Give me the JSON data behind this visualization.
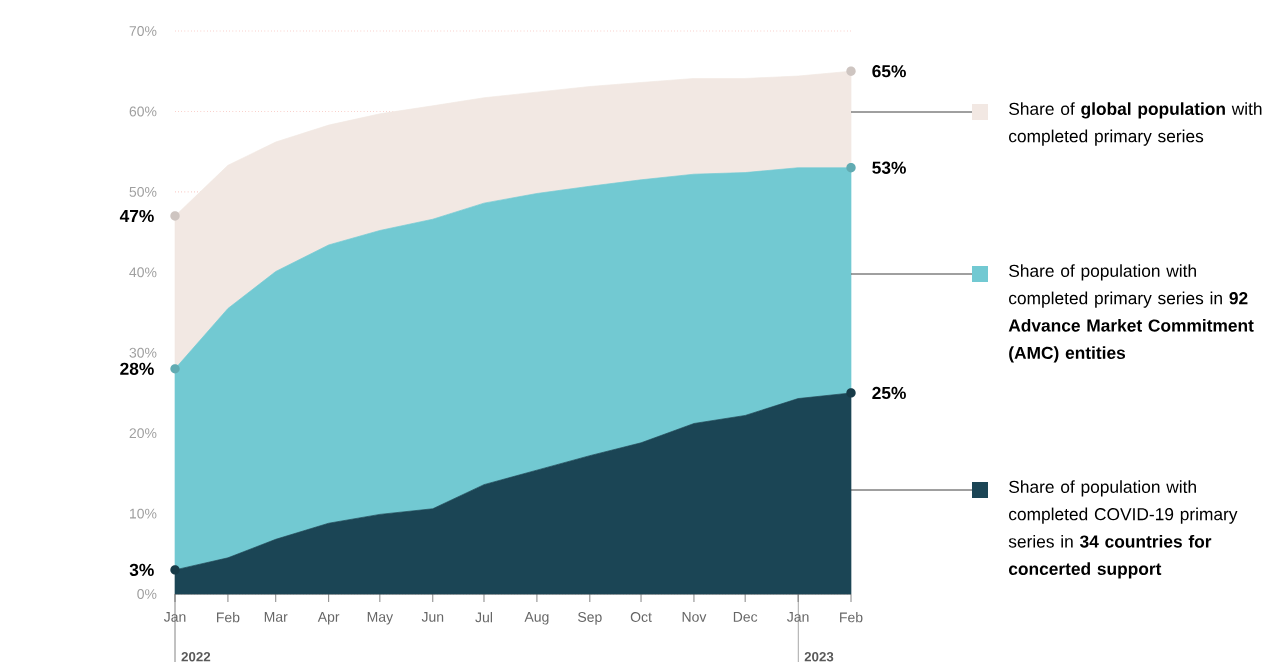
{
  "chart_data": {
    "type": "area",
    "x": [
      "2022-01",
      "2022-02",
      "2022-03",
      "2022-04",
      "2022-05",
      "2022-06",
      "2022-07",
      "2022-08",
      "2022-09",
      "2022-10",
      "2022-11",
      "2022-12",
      "2023-01",
      "2023-02"
    ],
    "xlim": [
      "2022-01",
      "2023-02"
    ],
    "xticks": [
      {
        "value": "2022-01",
        "label": "Jan"
      },
      {
        "value": "2022-02",
        "label": "Feb"
      },
      {
        "value": "2022-03",
        "label": "Mar"
      },
      {
        "value": "2022-04",
        "label": "Apr"
      },
      {
        "value": "2022-05",
        "label": "May"
      },
      {
        "value": "2022-06",
        "label": "Jun"
      },
      {
        "value": "2022-07",
        "label": "Jul"
      },
      {
        "value": "2022-08",
        "label": "Aug"
      },
      {
        "value": "2022-09",
        "label": "Sep"
      },
      {
        "value": "2022-10",
        "label": "Oct"
      },
      {
        "value": "2022-11",
        "label": "Nov"
      },
      {
        "value": "2022-12",
        "label": "Dec"
      },
      {
        "value": "2023-01",
        "label": "Jan"
      },
      {
        "value": "2023-02",
        "label": "Feb"
      }
    ],
    "ylim": [
      0,
      70
    ],
    "yticks": [
      {
        "value": 0,
        "label": "0%"
      },
      {
        "value": 10,
        "label": "10%"
      },
      {
        "value": 20,
        "label": "20%"
      },
      {
        "value": 30,
        "label": "30%"
      },
      {
        "value": 40,
        "label": "40%"
      },
      {
        "value": 50,
        "label": "50%"
      },
      {
        "value": 60,
        "label": "60%"
      },
      {
        "value": 70,
        "label": "70%"
      }
    ],
    "grid": "y",
    "legend": "right",
    "annotations": [
      "2022",
      "2023"
    ],
    "series": [
      {
        "name": "Share of **global population** with completed primary series",
        "color": "#f2e8e3",
        "values": [
          47,
          53.3,
          56.2,
          58.3,
          59.7,
          60.7,
          61.7,
          62.4,
          63.1,
          63.6,
          64.1,
          64.1,
          64.4,
          65
        ],
        "value_labels": [
          "47%",
          null,
          null,
          null,
          null,
          null,
          null,
          null,
          null,
          null,
          null,
          null,
          null,
          "65%"
        ]
      },
      {
        "name": "Share of population with completed primary series in **92 Advance Market Commitment (AMC) entities**",
        "color": "#72c9d2",
        "values": [
          28,
          35.5,
          40.1,
          43.4,
          45.2,
          46.6,
          48.6,
          49.8,
          50.7,
          51.5,
          52.2,
          52.4,
          53.0,
          53
        ],
        "value_labels": [
          "28%",
          null,
          null,
          null,
          null,
          null,
          null,
          null,
          null,
          null,
          null,
          null,
          null,
          "53%"
        ]
      },
      {
        "name": "Share of population with completed COVID-19 primary series in **34 countries for concerted support**",
        "color": "#1b4555",
        "values": [
          3,
          4.5,
          6.8,
          8.8,
          9.9,
          10.6,
          13.6,
          15.4,
          17.2,
          18.8,
          21.2,
          22.2,
          24.3,
          25
        ],
        "value_labels": [
          "3%",
          null,
          null,
          null,
          null,
          null,
          null,
          null,
          null,
          null,
          null,
          null,
          null,
          "25%"
        ]
      }
    ]
  }
}
